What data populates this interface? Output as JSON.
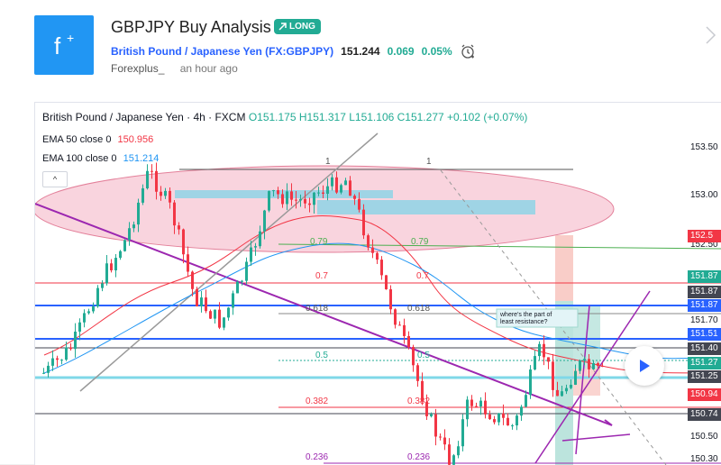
{
  "header": {
    "logo_text": "f",
    "title": "GBPJPY Buy Analysis",
    "badge": "LONG",
    "symbol_name": "British Pound / Japanese Yen (FX:GBPJPY)",
    "price": "151.244",
    "change": "0.069",
    "change_pct": "0.05%",
    "author": "Forexplus_",
    "time": "an hour ago"
  },
  "chart": {
    "legend_symbol": "British Pound / Japanese Yen · 4h · FXCM",
    "legend_ohlc": "O151.175 H151.317 L151.106 C151.277 +0.102 (+0.07%)",
    "ema50_label": "EMA 50 close 0",
    "ema50_value": "150.956",
    "ema100_label": "EMA 100 close 0",
    "ema100_value": "151.214",
    "collapse_glyph": "^",
    "annotation": "where's the part of least resistance?",
    "fib_left": [
      "0.79",
      "0.7",
      "0.618",
      "0.5",
      "0.382",
      "0.236"
    ],
    "fib_right": [
      "0.79",
      "0.7",
      "0.618",
      "0.5",
      "0.382",
      "0.236"
    ],
    "fib_top_left": "1",
    "fib_top_right": "1",
    "price_ticks": [
      "153.50",
      "153.00",
      "152.50",
      "151.70",
      "150.50",
      "150.30"
    ],
    "price_labels": [
      {
        "text": "152.5",
        "color": "#f23645"
      },
      {
        "text": "151.87",
        "color": "#22ab94"
      },
      {
        "text": "151.87",
        "color": "#434651"
      },
      {
        "text": "151.87",
        "color": "#2962ff"
      },
      {
        "text": "151.51",
        "color": "#2962ff"
      },
      {
        "text": "151.40",
        "color": "#434651"
      },
      {
        "text": "151.27",
        "color": "#22ab94"
      },
      {
        "text": "151.25",
        "color": "#434651"
      },
      {
        "text": "150.94",
        "color": "#f23645"
      },
      {
        "text": "150.74",
        "color": "#434651"
      }
    ]
  },
  "colors": {
    "accent": "#2196f3",
    "up": "#22ab94",
    "down": "#f23645",
    "ema50": "#f23645",
    "ema100": "#2196f3",
    "purple": "#9c27b0"
  }
}
